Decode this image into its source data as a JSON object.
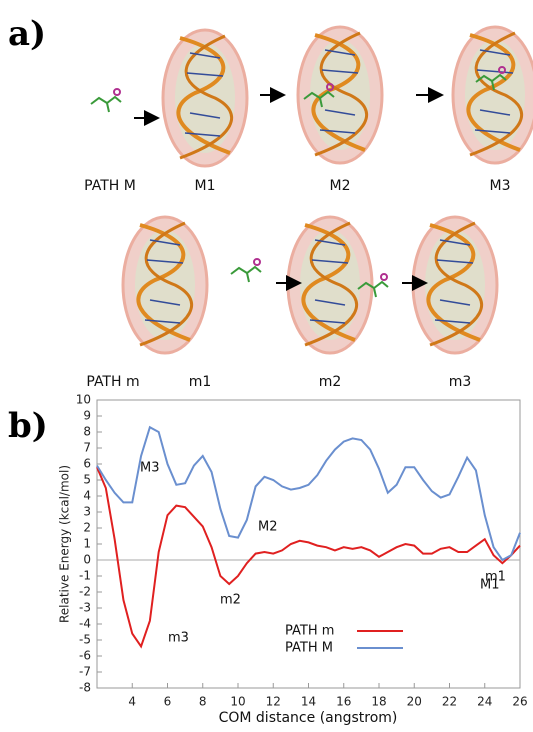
{
  "panel_a": {
    "label": "a)",
    "path_M": {
      "label": "PATH M",
      "states": [
        "M1",
        "M2",
        "M3"
      ]
    },
    "path_m": {
      "label": "PATH m",
      "states": [
        "m1",
        "m2",
        "m3"
      ]
    }
  },
  "chart_data": {
    "type": "line",
    "panel_label": "b)",
    "xlabel": "COM distance (angstrom)",
    "ylabel": "Relative Energy (kcal/mol)",
    "x": [
      2,
      2.5,
      3,
      3.5,
      4,
      4.5,
      5,
      5.5,
      6,
      6.5,
      7,
      7.5,
      8,
      8.5,
      9,
      9.5,
      10,
      10.5,
      11,
      11.5,
      12,
      12.5,
      13,
      13.5,
      14,
      14.5,
      15,
      15.5,
      16,
      16.5,
      17,
      17.5,
      18,
      18.5,
      19,
      19.5,
      20,
      20.5,
      21,
      21.5,
      22,
      22.5,
      23,
      23.5,
      24,
      24.5,
      25,
      25.5,
      26
    ],
    "series": [
      {
        "name": "PATH m",
        "color": "#e02020",
        "values": [
          5.8,
          4.5,
          1.3,
          -2.5,
          -4.6,
          -5.4,
          -3.8,
          0.5,
          2.8,
          3.4,
          3.3,
          2.7,
          2.1,
          0.8,
          -1.0,
          -1.5,
          -1.0,
          -0.2,
          0.4,
          0.5,
          0.4,
          0.6,
          1.0,
          1.2,
          1.1,
          0.9,
          0.8,
          0.6,
          0.8,
          0.7,
          0.8,
          0.6,
          0.2,
          0.5,
          0.8,
          1.0,
          0.9,
          0.4,
          0.4,
          0.7,
          0.8,
          0.5,
          0.5,
          0.9,
          1.3,
          0.3,
          -0.2,
          0.3,
          0.9
        ]
      },
      {
        "name": "PATH M",
        "color": "#6a8fcf",
        "values": [
          5.9,
          5.0,
          4.2,
          3.6,
          3.6,
          6.5,
          8.3,
          8.0,
          6.0,
          4.7,
          4.8,
          5.9,
          6.5,
          5.5,
          3.2,
          1.5,
          1.4,
          2.5,
          4.6,
          5.2,
          5.0,
          4.6,
          4.4,
          4.5,
          4.7,
          5.3,
          6.2,
          6.9,
          7.4,
          7.6,
          7.5,
          6.9,
          5.7,
          4.2,
          4.7,
          5.8,
          5.8,
          5.0,
          4.3,
          3.9,
          4.1,
          5.2,
          6.4,
          5.6,
          2.8,
          0.8,
          0.0,
          0.3,
          1.7
        ]
      }
    ],
    "annotations": [
      {
        "text": "M3",
        "series": "PATH M"
      },
      {
        "text": "M2",
        "series": "PATH M"
      },
      {
        "text": "M1",
        "series": "PATH M"
      },
      {
        "text": "m1",
        "series": "PATH m"
      },
      {
        "text": "m2",
        "series": "PATH m"
      },
      {
        "text": "m3",
        "series": "PATH m"
      }
    ],
    "xlim": [
      2,
      26
    ],
    "xticks": [
      4,
      6,
      8,
      10,
      12,
      14,
      16,
      18,
      20,
      22,
      24,
      26
    ],
    "ylim": [
      -8,
      10
    ],
    "yticks": [
      -8,
      -7,
      -6,
      -5,
      -4,
      -3,
      -2,
      -1,
      0,
      1,
      2,
      3,
      4,
      5,
      6,
      7,
      8,
      9,
      10
    ],
    "zero_line": true,
    "legend": "lower-center"
  }
}
